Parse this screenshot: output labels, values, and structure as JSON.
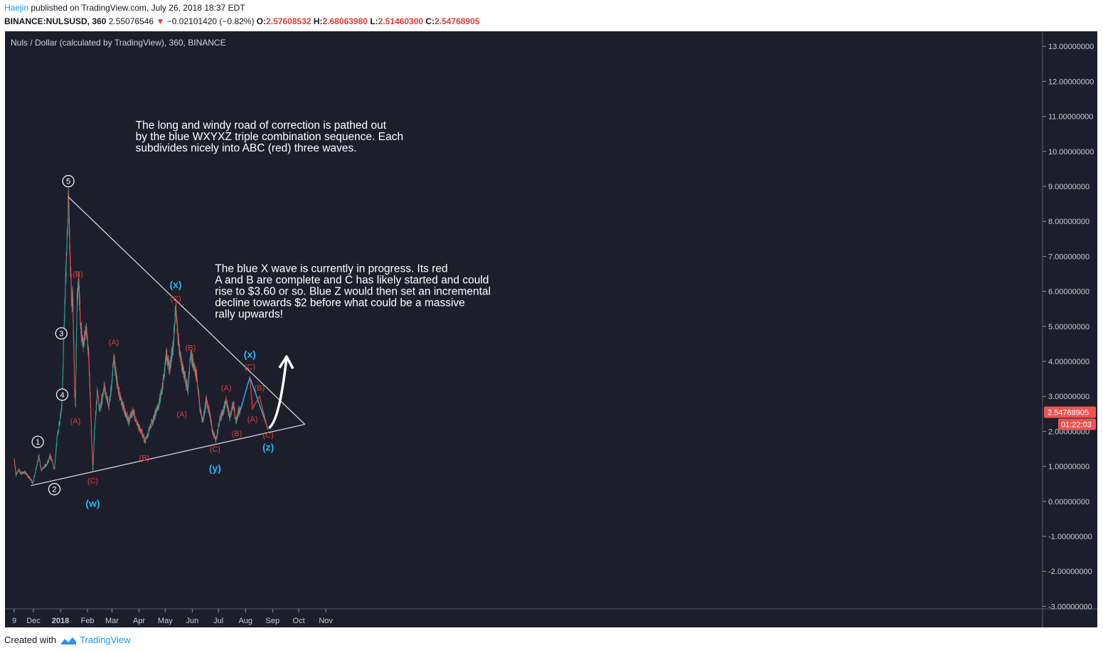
{
  "header": {
    "author": "Haejin",
    "published": "published on TradingView.com, July 26, 2018 18:37 EDT",
    "symbol": "BINANCE:NULSUSD, 360",
    "last": "2.55076546",
    "change": "−0.02101420 (−0.82%)",
    "o_label": "O:",
    "o": "2.57608532",
    "h_label": "H:",
    "h": "2.68063980",
    "l_label": "L:",
    "l": "2.51460300",
    "c_label": "C:",
    "c": "2.54768905"
  },
  "footer": {
    "created_with": "Created with",
    "brand": "TradingView"
  },
  "colors": {
    "background": "#1c1f2b",
    "up": "#26a69a",
    "down": "#ef5350",
    "trendline": "#e0e0e0",
    "blue_wave": "#29b6f6",
    "red_wave": "#e53935",
    "price_tag": "#ef5350",
    "white_label": "#ffffff"
  },
  "chart_data": {
    "type": "candlestick",
    "title": "Nuls / Dollar (calculated by TradingView), 360, BINANCE",
    "ylim": [
      -3.3,
      13.2
    ],
    "y_ticks": [
      "13.00000000",
      "12.00000000",
      "11.00000000",
      "10.00000000",
      "9.00000000",
      "8.00000000",
      "7.00000000",
      "6.00000000",
      "5.00000000",
      "4.00000000",
      "3.00000000",
      "2.00000000",
      "1.00000000",
      "0.00000000",
      "-1.00000000",
      "-2.00000000",
      "-3.00000000"
    ],
    "x_ticks": [
      "9",
      "Dec",
      "2018",
      "Feb",
      "Mar",
      "Apr",
      "May",
      "Jun",
      "Jul",
      "Aug",
      "Sep",
      "Oct",
      "Nov"
    ],
    "last_price_tag": "2.54768905",
    "countdown_tag": "01:22:03",
    "price_path": [
      [
        "2017-11-09",
        1.2
      ],
      [
        "2017-11-11",
        0.75
      ],
      [
        "2017-11-14",
        0.9
      ],
      [
        "2017-11-17",
        0.8
      ],
      [
        "2017-11-21",
        0.85
      ],
      [
        "2017-11-25",
        0.7
      ],
      [
        "2017-11-29",
        0.6
      ],
      [
        "2017-11-30",
        0.5
      ],
      [
        "2017-12-02",
        0.7
      ],
      [
        "2017-12-05",
        1.05
      ],
      [
        "2017-12-07",
        1.3
      ],
      [
        "2017-12-10",
        0.9
      ],
      [
        "2017-12-14",
        1.0
      ],
      [
        "2017-12-18",
        1.15
      ],
      [
        "2017-12-20",
        1.3
      ],
      [
        "2017-12-23",
        1.1
      ],
      [
        "2017-12-25",
        0.9
      ],
      [
        "2017-12-28",
        1.8
      ],
      [
        "2017-12-31",
        2.3
      ],
      [
        "2018-01-02",
        2.6
      ],
      [
        "2018-01-03",
        3.0
      ],
      [
        "2018-01-05",
        5.0
      ],
      [
        "2018-01-07",
        6.5
      ],
      [
        "2018-01-09",
        7.8
      ],
      [
        "2018-01-10",
        8.7
      ],
      [
        "2018-01-12",
        7.0
      ],
      [
        "2018-01-14",
        5.5
      ],
      [
        "2018-01-15",
        6.0
      ],
      [
        "2018-01-17",
        3.2
      ],
      [
        "2018-01-18",
        2.8
      ],
      [
        "2018-01-20",
        5.8
      ],
      [
        "2018-01-22",
        6.3
      ],
      [
        "2018-01-24",
        5.0
      ],
      [
        "2018-01-27",
        4.4
      ],
      [
        "2018-01-30",
        5.0
      ],
      [
        "2018-02-02",
        4.3
      ],
      [
        "2018-02-04",
        3.0
      ],
      [
        "2018-02-06",
        1.5
      ],
      [
        "2018-02-07",
        0.9
      ],
      [
        "2018-02-09",
        2.1
      ],
      [
        "2018-02-12",
        3.1
      ],
      [
        "2018-02-15",
        2.6
      ],
      [
        "2018-02-20",
        3.3
      ],
      [
        "2018-02-25",
        2.7
      ],
      [
        "2018-03-01",
        3.4
      ],
      [
        "2018-03-03",
        4.2
      ],
      [
        "2018-03-06",
        3.5
      ],
      [
        "2018-03-10",
        3.0
      ],
      [
        "2018-03-15",
        2.6
      ],
      [
        "2018-03-20",
        2.3
      ],
      [
        "2018-03-25",
        2.6
      ],
      [
        "2018-03-30",
        2.2
      ],
      [
        "2018-04-04",
        2.0
      ],
      [
        "2018-04-08",
        1.7
      ],
      [
        "2018-04-12",
        2.0
      ],
      [
        "2018-04-18",
        2.4
      ],
      [
        "2018-04-23",
        2.7
      ],
      [
        "2018-04-28",
        3.3
      ],
      [
        "2018-05-02",
        4.2
      ],
      [
        "2018-05-06",
        3.8
      ],
      [
        "2018-05-10",
        4.4
      ],
      [
        "2018-05-13",
        5.6
      ],
      [
        "2018-05-15",
        4.8
      ],
      [
        "2018-05-19",
        4.0
      ],
      [
        "2018-05-23",
        3.6
      ],
      [
        "2018-05-27",
        3.2
      ],
      [
        "2018-05-30",
        4.3
      ],
      [
        "2018-06-02",
        3.9
      ],
      [
        "2018-06-06",
        3.6
      ],
      [
        "2018-06-10",
        2.6
      ],
      [
        "2018-06-13",
        2.3
      ],
      [
        "2018-06-17",
        2.9
      ],
      [
        "2018-06-21",
        2.5
      ],
      [
        "2018-06-24",
        2.0
      ],
      [
        "2018-06-28",
        1.75
      ],
      [
        "2018-07-03",
        2.4
      ],
      [
        "2018-07-07",
        2.6
      ],
      [
        "2018-07-10",
        2.9
      ],
      [
        "2018-07-14",
        2.4
      ],
      [
        "2018-07-18",
        2.8
      ],
      [
        "2018-07-21",
        2.3
      ],
      [
        "2018-07-24",
        2.6
      ],
      [
        "2018-07-26",
        2.55
      ]
    ],
    "trendlines": [
      {
        "name": "upper",
        "from": [
          "2018-01-10",
          8.7
        ],
        "to": [
          "2018-10-08",
          2.2
        ]
      },
      {
        "name": "lower",
        "from": [
          "2017-11-28",
          0.45
        ],
        "to": [
          "2018-10-08",
          2.2
        ]
      }
    ],
    "projection_blue": [
      [
        "2018-07-26",
        2.6
      ],
      [
        "2018-08-06",
        3.55
      ],
      [
        "2018-08-27",
        2.05
      ]
    ],
    "projection_red": [
      [
        "2018-08-06",
        3.55
      ],
      [
        "2018-08-09",
        2.65
      ],
      [
        "2018-08-17",
        3.0
      ],
      [
        "2018-08-26",
        2.1
      ]
    ],
    "arrow": {
      "from": [
        "2018-08-28",
        2.1
      ],
      "to": [
        "2018-09-17",
        4.1
      ]
    },
    "wave_labels": [
      {
        "text": "1",
        "style": "circle",
        "at": [
          "2017-12-06",
          1.7
        ]
      },
      {
        "text": "2",
        "style": "circle",
        "at": [
          "2017-12-25",
          0.35
        ]
      },
      {
        "text": "3",
        "style": "circle",
        "at": [
          "2018-01-02",
          4.8
        ]
      },
      {
        "text": "4",
        "style": "circle",
        "at": [
          "2018-01-03",
          3.05
        ]
      },
      {
        "text": "5",
        "style": "circle",
        "at": [
          "2018-01-10",
          9.15
        ]
      },
      {
        "text": "(B)",
        "style": "red",
        "at": [
          "2018-01-21",
          6.5
        ]
      },
      {
        "text": "(A)",
        "style": "red",
        "at": [
          "2018-01-18",
          2.3
        ]
      },
      {
        "text": "(C)",
        "style": "red",
        "at": [
          "2018-02-07",
          0.6
        ]
      },
      {
        "text": "(w)",
        "style": "blue",
        "at": [
          "2018-02-07",
          -0.05
        ]
      },
      {
        "text": "(A)",
        "style": "red",
        "at": [
          "2018-03-03",
          4.55
        ]
      },
      {
        "text": "(B)",
        "style": "red",
        "at": [
          "2018-04-07",
          1.25
        ]
      },
      {
        "text": "(x)",
        "style": "blue",
        "at": [
          "2018-05-13",
          6.2
        ]
      },
      {
        "text": "(C)",
        "style": "red",
        "at": [
          "2018-05-13",
          5.8
        ]
      },
      {
        "text": "(B)",
        "style": "red",
        "at": [
          "2018-05-30",
          4.4
        ]
      },
      {
        "text": "(A)",
        "style": "red",
        "at": [
          "2018-05-20",
          2.5
        ]
      },
      {
        "text": "(C)",
        "style": "red",
        "at": [
          "2018-06-27",
          1.5
        ]
      },
      {
        "text": "(y)",
        "style": "blue",
        "at": [
          "2018-06-27",
          0.95
        ]
      },
      {
        "text": "(A)",
        "style": "red",
        "at": [
          "2018-07-10",
          3.25
        ]
      },
      {
        "text": "(B)",
        "style": "red",
        "at": [
          "2018-07-22",
          1.95
        ]
      },
      {
        "text": "(x)",
        "style": "blue",
        "at": [
          "2018-08-06",
          4.2
        ]
      },
      {
        "text": "(C)",
        "style": "red",
        "at": [
          "2018-08-06",
          3.85
        ]
      },
      {
        "text": "(A)",
        "style": "red",
        "at": [
          "2018-08-09",
          2.35
        ]
      },
      {
        "text": "(B)",
        "style": "red",
        "at": [
          "2018-08-17",
          3.25
        ]
      },
      {
        "text": "(C)",
        "style": "red",
        "at": [
          "2018-08-27",
          1.9
        ]
      },
      {
        "text": "(z)",
        "style": "blue",
        "at": [
          "2018-08-27",
          1.55
        ]
      }
    ],
    "annotations": [
      {
        "lines": [
          "The long and windy road of correction is pathed out",
          "by the blue WXYXZ triple combination sequence. Each",
          "subdivides nicely into ABC (red) three waves."
        ],
        "at": [
          "2018-03-28",
          10.65
        ]
      },
      {
        "lines": [
          "The blue X wave is currently in progress. Its red",
          "A and B are complete and C has likely started and could",
          "rise to $3.60 or so. Blue Z would then set an incremental",
          "decline towards $2 before what could be a massive",
          "rally upwards!"
        ],
        "at": [
          "2018-06-27",
          6.55
        ]
      }
    ]
  }
}
